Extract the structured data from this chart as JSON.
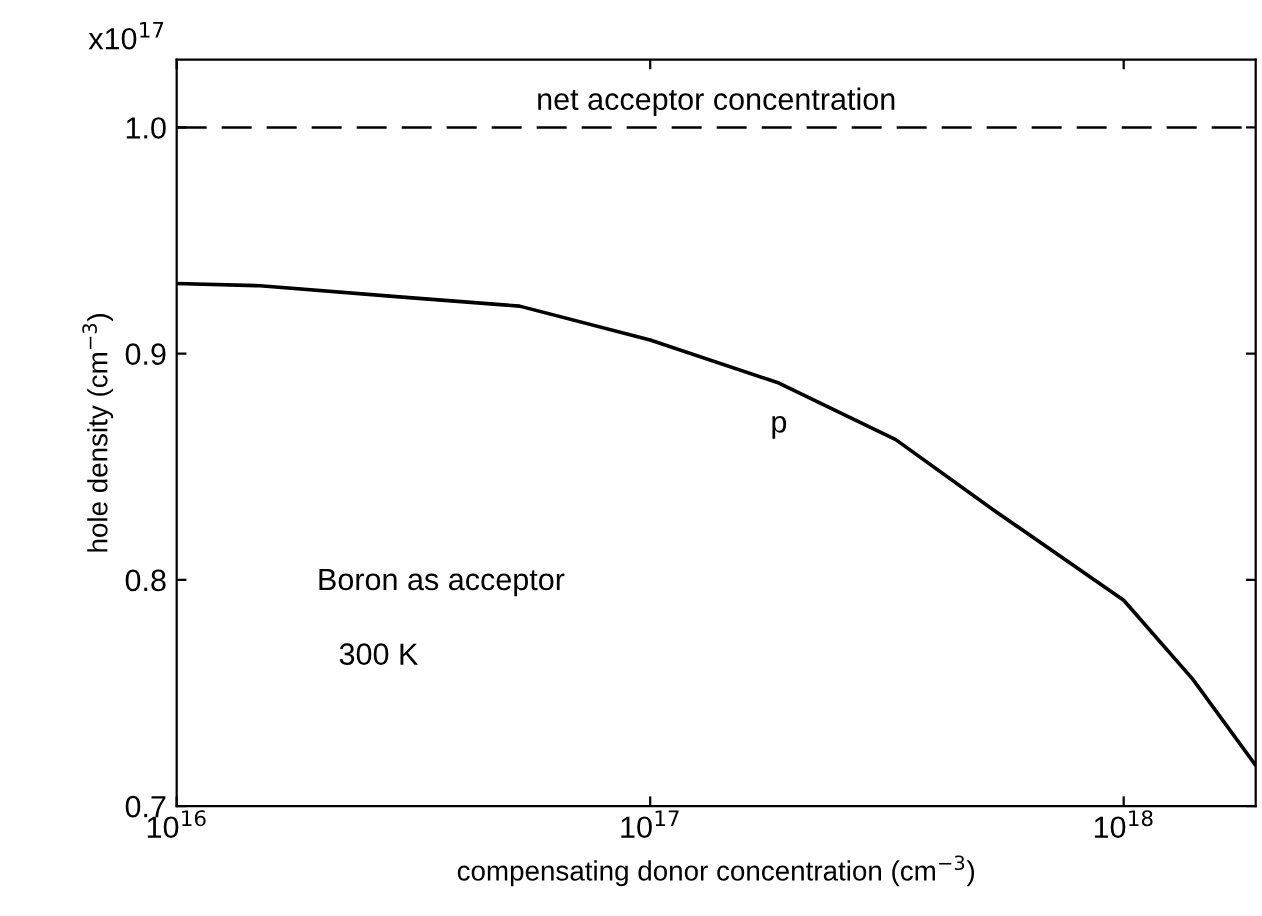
{
  "chart_data": {
    "type": "line",
    "xlabel": "compensating donor concentration (cm$^{−3}$)",
    "ylabel": "hole density (cm$^{−3}$)",
    "log": "x",
    "xlim": [
      1e+16,
      1.9e+18
    ],
    "xticks": [
      {
        "value": 1e+16,
        "label": "10$^{16}$"
      },
      {
        "value": 1e+17,
        "label": "10$^{17}$"
      },
      {
        "value": 1e+18,
        "label": "10$^{18}$"
      }
    ],
    "ylim": [
      0.7,
      1.03
    ],
    "yticks": [
      {
        "value": 0.7,
        "label": "0.7"
      },
      {
        "value": 0.8,
        "label": "0.8"
      },
      {
        "value": 0.9,
        "label": "0.9"
      },
      {
        "value": 1.0,
        "label": "1.0"
      }
    ],
    "x": [
      1e+16,
      1.5e+16,
      3e+16,
      5.3e+16,
      1e+17,
      1.87e+17,
      3.3e+17,
      5.3e+17,
      1e+18,
      1.4e+18,
      1.9e+18
    ],
    "series": [
      {
        "name": "p",
        "color": "#000000",
        "values": [
          0.931,
          0.93,
          0.925,
          0.921,
          0.906,
          0.887,
          0.862,
          0.831,
          0.791,
          0.756,
          0.718
        ]
      }
    ],
    "ref_lines": [
      {
        "axis": "y",
        "value": 1.0,
        "label": "net acceptor concentration",
        "color": "#000000",
        "line_style": "dashed"
      }
    ],
    "annotations": [
      "x10$^{17}$",
      "Boron as acceptor",
      "300 K"
    ],
    "grid": false,
    "legend": false,
    "line_style": "solid",
    "marker": "none"
  }
}
